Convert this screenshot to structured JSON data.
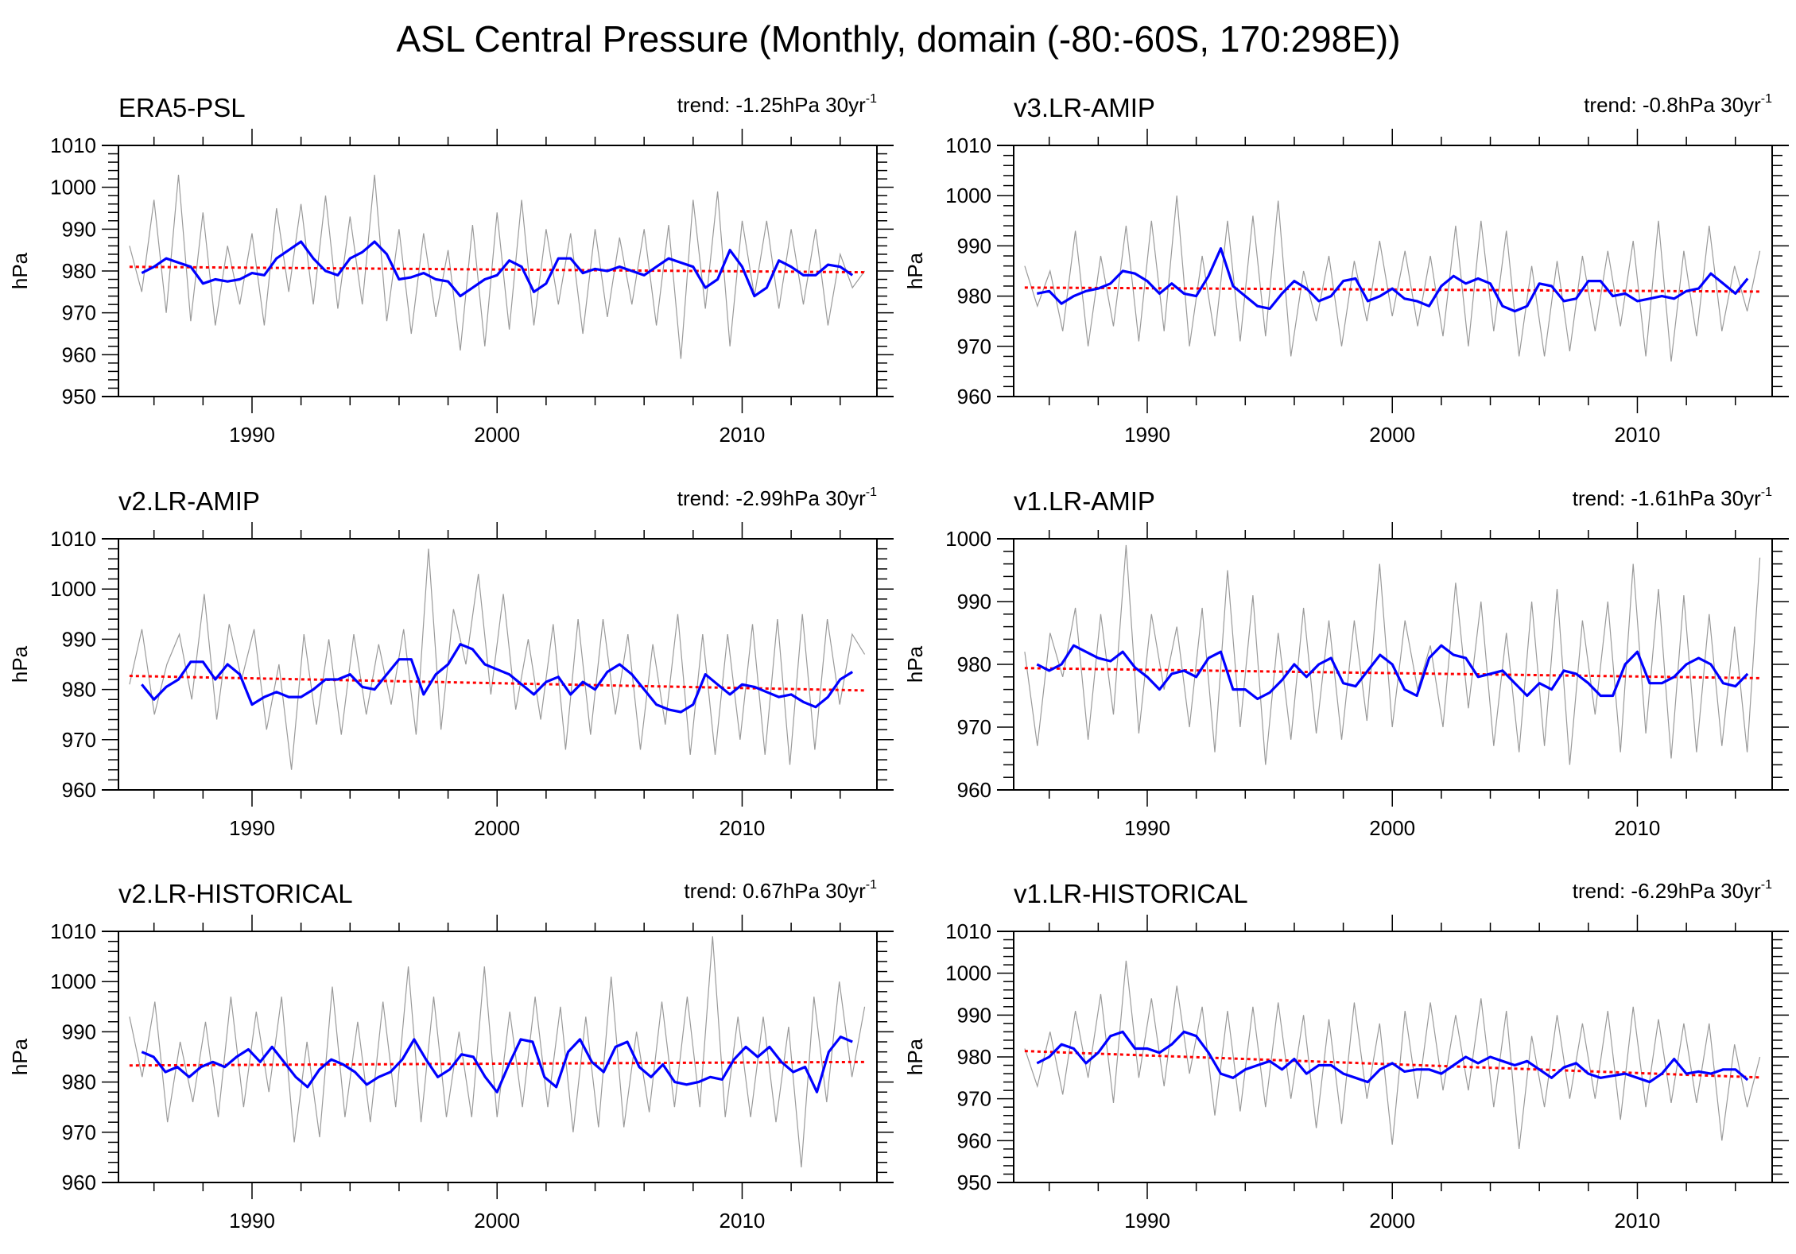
{
  "chart_data": {
    "title": "ASL Central Pressure (Monthly, domain (-80:-60S, 170:298E))",
    "type": "line",
    "x_range": [
      1985,
      2015
    ],
    "x_ticks": [
      1990,
      2000,
      2010
    ],
    "x_tick_labels": [
      "1990",
      "2000",
      "2010"
    ],
    "colors": {
      "raw": "#9a9a9a",
      "smoothed": "#0000ff",
      "trend": "#ff0000"
    },
    "panels": [
      {
        "title": "ERA5-PSL",
        "trend_label": "trend: -1.25hPa 30yr",
        "trend_exp": "-1",
        "ylabel": "hPa",
        "ylim": [
          950,
          1010
        ],
        "yticks": [
          "950",
          "960",
          "970",
          "980",
          "990",
          "1000",
          "1010"
        ],
        "trend_line": [
          981.0,
          979.7
        ],
        "smoothed_start": 1985.5,
        "smoothed": [
          979.5,
          981,
          983,
          982,
          981,
          977,
          978,
          977.5,
          978,
          979.5,
          979,
          983,
          985,
          987,
          983,
          980,
          979,
          983,
          984.5,
          987,
          984,
          978,
          978.5,
          979.5,
          978,
          977.5,
          974,
          976,
          978,
          979,
          982.5,
          981,
          975,
          977,
          983,
          983,
          979.5,
          980.5,
          980,
          981,
          980,
          979,
          981,
          983,
          982,
          981,
          976,
          978,
          985,
          981,
          974,
          976,
          982.5,
          981,
          979,
          979,
          981.5,
          981,
          979
        ],
        "raw": [
          986,
          975,
          997,
          970,
          1003,
          968,
          994,
          967,
          986,
          972,
          989,
          967,
          995,
          975,
          996,
          972,
          998,
          971,
          993,
          972,
          1003,
          968,
          990,
          965,
          989,
          969,
          985,
          961,
          991,
          962,
          994,
          966,
          997,
          967,
          990,
          972,
          989,
          965,
          990,
          969,
          988,
          972,
          990,
          967,
          991,
          959,
          997,
          971,
          999,
          962,
          992,
          974,
          992,
          971,
          990,
          972,
          990,
          967,
          984,
          976,
          980
        ]
      },
      {
        "title": "v3.LR-AMIP",
        "trend_label": "trend: -0.8hPa 30yr",
        "trend_exp": "-1",
        "ylabel": "hPa",
        "ylim": [
          960,
          1010
        ],
        "yticks": [
          "960",
          "970",
          "980",
          "990",
          "1000",
          "1010"
        ],
        "trend_line": [
          981.7,
          980.9
        ],
        "smoothed_start": 1985.5,
        "smoothed": [
          980.5,
          981,
          978.5,
          980,
          981,
          981.5,
          982.5,
          985,
          984.5,
          983,
          980.5,
          982.5,
          980.5,
          980,
          984,
          989.5,
          982,
          980,
          978,
          977.5,
          980.5,
          983,
          981.5,
          979,
          980,
          983,
          983.5,
          979,
          980,
          981.5,
          979.5,
          979,
          978,
          982,
          984,
          982.5,
          983.5,
          982.5,
          978,
          977,
          978,
          982.5,
          982,
          979,
          979.5,
          983,
          983,
          980,
          980.5,
          979,
          979.5,
          980,
          979.5,
          981,
          981.5,
          984.5,
          982.5,
          980.5,
          983.5
        ],
        "raw": [
          986,
          978,
          985,
          973,
          993,
          970,
          988,
          974,
          994,
          971,
          995,
          973,
          1000,
          970,
          988,
          972,
          995,
          971,
          996,
          972,
          999,
          968,
          985,
          975,
          988,
          970,
          987,
          975,
          991,
          976,
          989,
          974,
          988,
          972,
          994,
          970,
          995,
          973,
          993,
          968,
          986,
          968,
          987,
          969,
          988,
          973,
          989,
          974,
          991,
          968,
          995,
          967,
          989,
          972,
          994,
          973,
          986,
          977,
          989
        ]
      },
      {
        "title": "v2.LR-AMIP",
        "trend_label": "trend: -2.99hPa 30yr",
        "trend_exp": "-1",
        "ylabel": "hPa",
        "ylim": [
          960,
          1010
        ],
        "yticks": [
          "960",
          "970",
          "980",
          "990",
          "1000",
          "1010"
        ],
        "trend_line": [
          982.7,
          979.8
        ],
        "smoothed_start": 1985.5,
        "smoothed": [
          981,
          978,
          980.5,
          982,
          985.5,
          985.5,
          982,
          985,
          983,
          977,
          978.5,
          979.5,
          978.5,
          978.5,
          980,
          982,
          982,
          983,
          980.5,
          980,
          983,
          986,
          986,
          979,
          983,
          985,
          989,
          988,
          985,
          984,
          983,
          981,
          979,
          981.5,
          982.5,
          979,
          981.5,
          980,
          983.5,
          985,
          983,
          980,
          977,
          976,
          975.5,
          977,
          983,
          981,
          979,
          981,
          980.5,
          979.5,
          978.5,
          979,
          977.5,
          976.5,
          978.5,
          982,
          983.5
        ],
        "raw": [
          981,
          992,
          975,
          985,
          991,
          978,
          999,
          974,
          993,
          982,
          992,
          972,
          985,
          964,
          991,
          973,
          990,
          971,
          991,
          975,
          989,
          977,
          992,
          971,
          1008,
          972,
          996,
          985,
          1003,
          979,
          999,
          976,
          990,
          974,
          993,
          968,
          994,
          971,
          994,
          975,
          991,
          968,
          989,
          973,
          995,
          967,
          991,
          967,
          991,
          970,
          993,
          967,
          994,
          965,
          995,
          968,
          994,
          977,
          991,
          987
        ]
      },
      {
        "title": "v1.LR-AMIP",
        "trend_label": "trend: -1.61hPa 30yr",
        "trend_exp": "-1",
        "ylabel": "hPa",
        "ylim": [
          960,
          1000
        ],
        "yticks": [
          "960",
          "970",
          "980",
          "990",
          "1000"
        ],
        "trend_line": [
          979.4,
          977.8
        ],
        "smoothed_start": 1985.5,
        "smoothed": [
          980,
          979,
          980,
          983,
          982,
          981,
          980.5,
          982,
          979.5,
          978,
          976,
          978.5,
          979,
          978,
          981,
          982,
          976,
          976,
          974.5,
          975.5,
          977.5,
          980,
          978,
          980,
          981,
          977,
          976.5,
          979,
          981.5,
          980,
          976,
          975,
          981,
          983,
          981.5,
          981,
          978,
          978.5,
          979,
          977,
          975,
          977,
          976,
          979,
          978.5,
          977,
          975,
          975,
          980,
          982,
          977,
          977,
          978,
          980,
          981,
          980,
          977,
          976.5,
          978.5
        ],
        "raw": [
          982,
          967,
          985,
          978,
          989,
          968,
          988,
          972,
          999,
          969,
          988,
          976,
          986,
          970,
          989,
          966,
          995,
          970,
          991,
          964,
          985,
          968,
          989,
          969,
          987,
          968,
          987,
          971,
          996,
          970,
          987,
          976,
          983,
          970,
          993,
          973,
          990,
          967,
          985,
          966,
          990,
          967,
          992,
          964,
          987,
          972,
          990,
          966,
          996,
          969,
          992,
          965,
          991,
          966,
          988,
          967,
          986,
          966,
          997
        ]
      },
      {
        "title": "v2.LR-HISTORICAL",
        "trend_label": "trend: 0.67hPa 30yr",
        "trend_exp": "-1",
        "ylabel": "hPa",
        "ylim": [
          960,
          1010
        ],
        "yticks": [
          "960",
          "970",
          "980",
          "990",
          "1000",
          "1010"
        ],
        "trend_line": [
          983.3,
          984.0
        ],
        "smoothed_start": 1985.5,
        "smoothed": [
          986,
          985,
          982,
          983,
          981,
          983,
          984,
          983,
          985,
          986.5,
          984,
          987,
          984,
          981,
          979,
          982.5,
          984.5,
          983.5,
          982,
          979.5,
          981,
          982,
          984.5,
          988.5,
          984.5,
          981,
          982.5,
          985.5,
          985,
          981,
          978,
          983.5,
          988.5,
          988,
          981,
          979,
          986,
          988.5,
          984,
          982,
          987,
          988,
          983,
          981,
          983.5,
          980,
          979.5,
          980,
          981,
          980.5,
          984.5,
          987,
          985,
          987,
          984,
          982,
          983,
          978,
          986,
          989,
          988
        ],
        "raw": [
          993,
          981,
          996,
          972,
          988,
          976,
          992,
          973,
          997,
          975,
          994,
          978,
          997,
          968,
          988,
          969,
          999,
          973,
          992,
          972,
          996,
          975,
          1003,
          972,
          997,
          973,
          990,
          973,
          1003,
          973,
          994,
          975,
          997,
          975,
          995,
          970,
          993,
          971,
          1001,
          971,
          990,
          974,
          996,
          975,
          997,
          975,
          1009,
          973,
          993,
          973,
          993,
          972,
          991,
          963,
          997,
          976,
          1000,
          981,
          995
        ]
      },
      {
        "title": "v1.LR-HISTORICAL",
        "trend_label": "trend: -6.29hPa 30yr",
        "trend_exp": "-1",
        "ylabel": "hPa",
        "ylim": [
          950,
          1010
        ],
        "yticks": [
          "950",
          "960",
          "970",
          "980",
          "990",
          "1000",
          "1010"
        ],
        "trend_line": [
          981.4,
          975.1
        ],
        "smoothed_start": 1985.5,
        "smoothed": [
          978.5,
          980,
          983,
          982,
          978.5,
          981,
          985,
          986,
          982,
          982,
          981,
          983,
          986,
          985,
          981,
          976,
          975,
          977,
          978,
          979,
          977,
          979.5,
          976,
          978,
          978,
          976,
          975,
          974,
          977,
          978.5,
          976.5,
          977,
          977,
          976,
          978,
          980,
          978.5,
          980,
          979,
          978,
          979,
          977,
          975,
          977.5,
          978.5,
          976,
          975,
          975.5,
          976,
          975,
          974,
          976,
          979.5,
          976,
          976.5,
          976,
          977,
          977,
          974.5
        ],
        "raw": [
          982,
          973,
          986,
          971,
          991,
          975,
          995,
          969,
          1003,
          975,
          994,
          973,
          997,
          976,
          992,
          966,
          991,
          967,
          992,
          968,
          993,
          970,
          990,
          963,
          989,
          964,
          993,
          970,
          988,
          959,
          991,
          970,
          993,
          972,
          990,
          972,
          994,
          968,
          991,
          958,
          985,
          968,
          990,
          970,
          988,
          970,
          991,
          965,
          992,
          968,
          989,
          969,
          988,
          969,
          988,
          960,
          983,
          968,
          980
        ]
      }
    ]
  }
}
